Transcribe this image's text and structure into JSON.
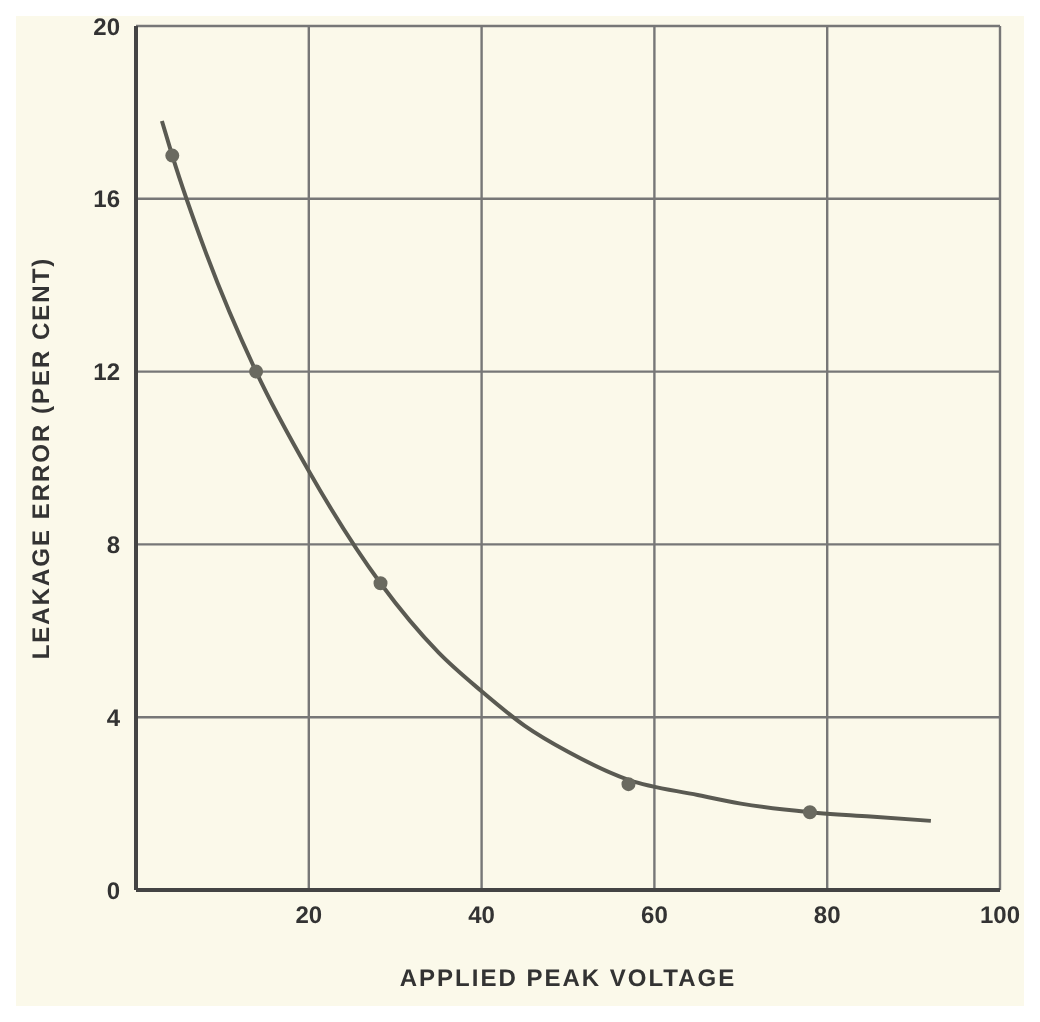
{
  "chart_data": {
    "type": "line",
    "xlabel": "APPLIED PEAK VOLTAGE",
    "ylabel": "LEAKAGE ERROR (PER CENT)",
    "xlim": [
      0,
      100
    ],
    "xticks": [
      {
        "value": 0,
        "label": null
      },
      20,
      40,
      60,
      80,
      100
    ],
    "ylim": [
      0,
      20
    ],
    "yticks": [
      0,
      4,
      8,
      12,
      16,
      20
    ],
    "grid": true,
    "series": [
      {
        "color": "#5a5a52",
        "marker": "none",
        "x": [
          3,
          4.2,
          8,
          13.9,
          20,
          28.3,
          35,
          40,
          45,
          50,
          57,
          65,
          70,
          78,
          85,
          92
        ],
        "values": [
          17.8,
          17,
          14.8,
          12,
          9.7,
          7.1,
          5.5,
          4.6,
          3.8,
          3.2,
          2.55,
          2.2,
          2,
          1.8,
          1.7,
          1.6
        ]
      },
      {
        "type": "scatter",
        "color": "#6a6a60",
        "marker": "circle",
        "x": [
          4.2,
          13.9,
          28.3,
          57,
          78
        ],
        "values": [
          17,
          12,
          7.1,
          2.45,
          1.8
        ]
      }
    ]
  }
}
